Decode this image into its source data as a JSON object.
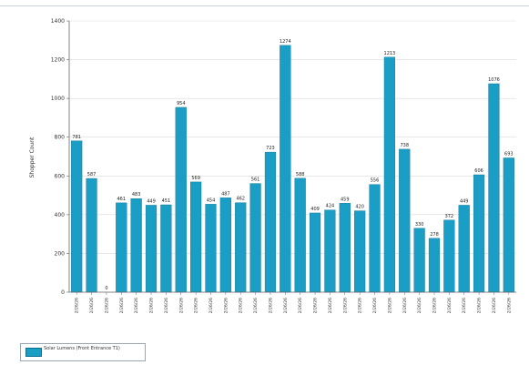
{
  "chart_data": {
    "type": "bar",
    "ylabel": "Shopper Count",
    "xlabel": "",
    "ylim": [
      0,
      1400
    ],
    "yticks": [
      0,
      200,
      400,
      600,
      800,
      1000,
      1200,
      1400
    ],
    "grid": true,
    "legend_position": "bottom-left",
    "bar_color": "#1b9ec6",
    "series": [
      {
        "name": "Solar Lumens (Front Entrance T1)",
        "values": [
          781,
          587,
          0,
          461,
          483,
          449,
          451,
          954,
          569,
          454,
          487,
          462,
          561,
          723,
          1274,
          588,
          409,
          424,
          459,
          420,
          556,
          1213,
          738,
          330,
          278,
          372,
          449,
          606,
          1076,
          693
        ],
        "labels": [
          "781",
          "587",
          "0",
          "461",
          "483",
          "449",
          "451",
          "954",
          "569",
          "454",
          "487",
          "462",
          "561",
          "723",
          "1274",
          "588",
          "409",
          "424",
          "459",
          "420",
          "556",
          "1213",
          "738",
          "330",
          "278",
          "372",
          "449",
          "606",
          "1076",
          "693"
        ]
      }
    ],
    "categories": [
      "2/26/26",
      "2/26/26",
      "2/26/26",
      "2/26/26",
      "2/26/26",
      "2/26/26",
      "2/26/26",
      "2/26/26",
      "2/26/26",
      "2/26/26",
      "2/26/26",
      "2/26/26",
      "2/26/26",
      "2/26/26",
      "2/26/26",
      "2/26/26",
      "2/26/26",
      "2/26/26",
      "2/26/26",
      "2/26/26",
      "2/26/26",
      "2/26/26",
      "2/26/26",
      "2/26/26",
      "2/26/26",
      "2/26/26",
      "2/26/26",
      "2/26/26",
      "2/26/26",
      "2/26/26"
    ]
  },
  "legend": {
    "label": "Solar Lumens (Front Entrance T1)"
  }
}
